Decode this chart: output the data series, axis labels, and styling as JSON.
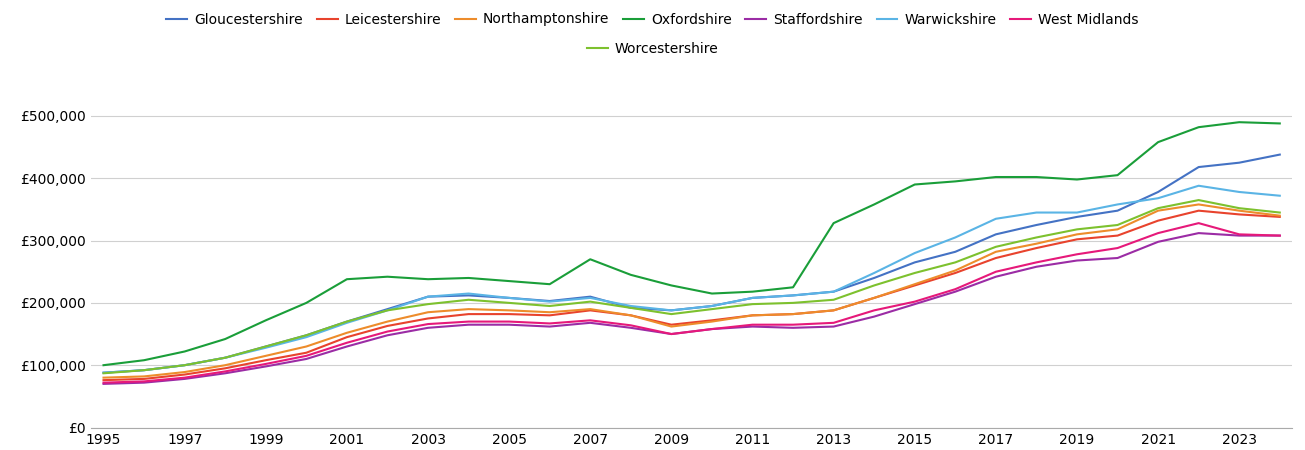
{
  "years": [
    1995,
    1996,
    1997,
    1998,
    1999,
    2000,
    2001,
    2002,
    2003,
    2004,
    2005,
    2006,
    2007,
    2008,
    2009,
    2010,
    2011,
    2012,
    2013,
    2014,
    2015,
    2016,
    2017,
    2018,
    2019,
    2020,
    2021,
    2022,
    2023,
    2024
  ],
  "series": {
    "Gloucestershire": {
      "color": "#4472c4",
      "values": [
        88000,
        92000,
        100000,
        112000,
        130000,
        148000,
        170000,
        190000,
        210000,
        212000,
        208000,
        203000,
        210000,
        192000,
        188000,
        195000,
        208000,
        212000,
        218000,
        240000,
        265000,
        282000,
        310000,
        325000,
        338000,
        348000,
        378000,
        418000,
        425000,
        438000
      ]
    },
    "Leicestershire": {
      "color": "#e8432d",
      "values": [
        76000,
        78000,
        85000,
        95000,
        108000,
        120000,
        145000,
        163000,
        175000,
        182000,
        182000,
        180000,
        188000,
        180000,
        165000,
        172000,
        180000,
        182000,
        188000,
        208000,
        228000,
        248000,
        272000,
        288000,
        302000,
        308000,
        332000,
        348000,
        342000,
        338000
      ]
    },
    "Northamptonshire": {
      "color": "#ed8c2b",
      "values": [
        80000,
        82000,
        89000,
        100000,
        115000,
        130000,
        152000,
        170000,
        185000,
        190000,
        188000,
        185000,
        190000,
        180000,
        162000,
        170000,
        180000,
        182000,
        188000,
        208000,
        230000,
        252000,
        282000,
        295000,
        310000,
        318000,
        348000,
        358000,
        348000,
        340000
      ]
    },
    "Oxfordshire": {
      "color": "#1a9e39",
      "values": [
        100000,
        108000,
        122000,
        142000,
        172000,
        200000,
        238000,
        242000,
        238000,
        240000,
        235000,
        230000,
        270000,
        245000,
        228000,
        215000,
        218000,
        225000,
        328000,
        358000,
        390000,
        395000,
        402000,
        402000,
        398000,
        405000,
        458000,
        482000,
        490000,
        488000
      ]
    },
    "Staffordshire": {
      "color": "#9b2ca5",
      "values": [
        70000,
        72000,
        78000,
        87000,
        98000,
        110000,
        130000,
        148000,
        160000,
        165000,
        165000,
        162000,
        168000,
        160000,
        150000,
        158000,
        162000,
        160000,
        162000,
        178000,
        198000,
        218000,
        242000,
        258000,
        268000,
        272000,
        298000,
        312000,
        308000,
        308000
      ]
    },
    "Warwickshire": {
      "color": "#5ab4e5",
      "values": [
        88000,
        92000,
        100000,
        112000,
        128000,
        145000,
        168000,
        188000,
        210000,
        215000,
        208000,
        202000,
        208000,
        195000,
        188000,
        195000,
        208000,
        212000,
        218000,
        248000,
        280000,
        305000,
        335000,
        345000,
        345000,
        358000,
        368000,
        388000,
        378000,
        372000
      ]
    },
    "West Midlands": {
      "color": "#e6197a",
      "values": [
        72000,
        74000,
        80000,
        90000,
        102000,
        115000,
        136000,
        154000,
        166000,
        170000,
        170000,
        167000,
        172000,
        164000,
        150000,
        158000,
        165000,
        165000,
        168000,
        188000,
        202000,
        222000,
        250000,
        265000,
        278000,
        288000,
        312000,
        328000,
        310000,
        308000
      ]
    },
    "Worcestershire": {
      "color": "#7dc12e",
      "values": [
        87000,
        92000,
        100000,
        112000,
        130000,
        148000,
        170000,
        188000,
        198000,
        205000,
        200000,
        195000,
        202000,
        192000,
        182000,
        190000,
        198000,
        200000,
        205000,
        228000,
        248000,
        265000,
        290000,
        305000,
        318000,
        325000,
        352000,
        365000,
        352000,
        345000
      ]
    }
  },
  "ylim": [
    0,
    520000
  ],
  "yticks": [
    0,
    100000,
    200000,
    300000,
    400000,
    500000
  ],
  "xtick_years": [
    1995,
    1997,
    1999,
    2001,
    2003,
    2005,
    2007,
    2009,
    2011,
    2013,
    2015,
    2017,
    2019,
    2021,
    2023
  ],
  "background_color": "#ffffff",
  "grid_color": "#d0d0d0",
  "legend_order": [
    "Gloucestershire",
    "Leicestershire",
    "Northamptonshire",
    "Oxfordshire",
    "Staffordshire",
    "Warwickshire",
    "West Midlands",
    "Worcestershire"
  ]
}
